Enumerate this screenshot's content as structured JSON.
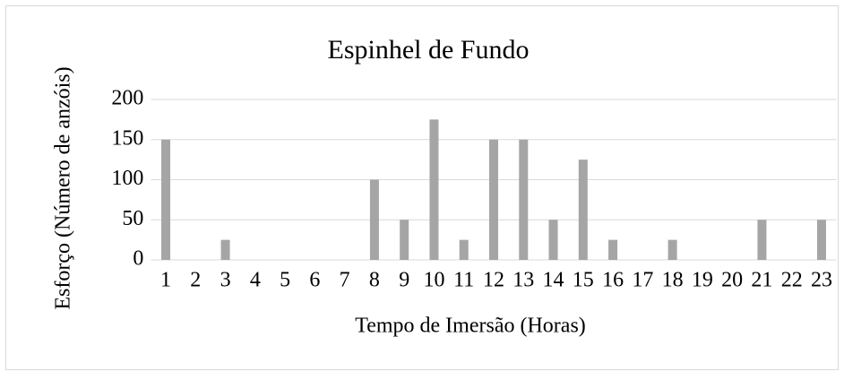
{
  "chart_data": {
    "type": "bar",
    "title": "Espinhel de Fundo",
    "x_label": "Tempo de Imersão (Horas)",
    "y_label": "Esforço (Número de anzóis)",
    "categories": [
      "1",
      "2",
      "3",
      "4",
      "5",
      "6",
      "7",
      "8",
      "9",
      "10",
      "11",
      "12",
      "13",
      "14",
      "15",
      "16",
      "17",
      "18",
      "19",
      "20",
      "21",
      "22",
      "23"
    ],
    "values": [
      150,
      0,
      25,
      0,
      0,
      0,
      0,
      100,
      50,
      175,
      25,
      150,
      150,
      50,
      125,
      25,
      0,
      25,
      0,
      0,
      50,
      0,
      50
    ],
    "color": "#a5a5a5",
    "ylim": [
      0,
      200
    ],
    "yticks": [
      0,
      50,
      100,
      150,
      200
    ],
    "grid": true
  }
}
